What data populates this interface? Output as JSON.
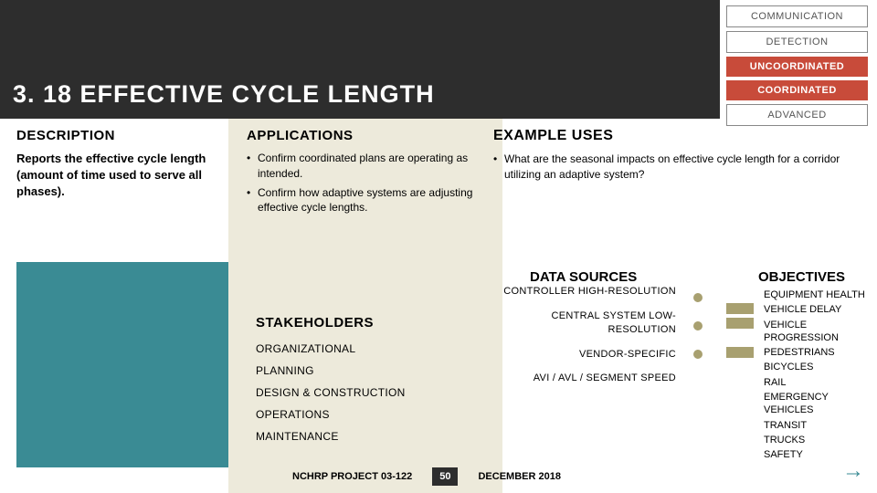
{
  "colors": {
    "dark": "#2d2d2d",
    "teal": "#3a8b94",
    "cream": "#edeadb",
    "olive": "#a8a070",
    "red": "#c84b3a",
    "grayBorder": "#888888"
  },
  "title": "3. 18 EFFECTIVE CYCLE LENGTH",
  "tags": [
    {
      "label": "COMMUNICATION",
      "bg": "#ffffff",
      "fg": "#555555",
      "solid": false
    },
    {
      "label": "DETECTION",
      "bg": "#ffffff",
      "fg": "#555555",
      "solid": false
    },
    {
      "label": "UNCOORDINATED",
      "bg": "#c84b3a",
      "fg": "#ffffff",
      "solid": true
    },
    {
      "label": "COORDINATED",
      "bg": "#c84b3a",
      "fg": "#ffffff",
      "solid": true
    },
    {
      "label": "ADVANCED",
      "bg": "#ffffff",
      "fg": "#555555",
      "solid": false
    }
  ],
  "description": {
    "heading": "DESCRIPTION",
    "text": "Reports the effective cycle length (amount of time used to serve all phases)."
  },
  "applications": {
    "heading": "APPLICATIONS",
    "items": [
      "Confirm coordinated plans are operating as intended.",
      "Confirm how adaptive systems are adjusting effective cycle lengths."
    ]
  },
  "example": {
    "heading": "EXAMPLE USES",
    "items": [
      "What are the seasonal impacts on effective cycle length for a corridor utilizing an adaptive system?"
    ]
  },
  "stakeholders": {
    "heading": "STAKEHOLDERS",
    "items": [
      "ORGANIZATIONAL",
      "PLANNING",
      "DESIGN & CONSTRUCTION",
      "OPERATIONS",
      "MAINTENANCE"
    ]
  },
  "datasources": {
    "heading": "DATA SOURCES",
    "items": [
      {
        "label": "CONTROLLER HIGH-RESOLUTION",
        "dot": "#a8a070"
      },
      {
        "label": "CENTRAL SYSTEM LOW-RESOLUTION",
        "dot": "#a8a070"
      },
      {
        "label": "VENDOR-SPECIFIC",
        "dot": "#a8a070"
      },
      {
        "label": "AVI / AVL / SEGMENT SPEED",
        "dot": null
      }
    ]
  },
  "objectives": {
    "heading": "OBJECTIVES",
    "items": [
      {
        "label": "EQUIPMENT HEALTH",
        "chip": null
      },
      {
        "label": "VEHICLE DELAY",
        "chip": "#a8a070"
      },
      {
        "label": "VEHICLE PROGRESSION",
        "chip": "#a8a070"
      },
      {
        "label": "PEDESTRIANS",
        "chip": null
      },
      {
        "label": "BICYCLES",
        "chip": "#a8a070"
      },
      {
        "label": "RAIL",
        "chip": null
      },
      {
        "label": "EMERGENCY VEHICLES",
        "chip": null
      },
      {
        "label": "TRANSIT",
        "chip": null
      },
      {
        "label": "TRUCKS",
        "chip": null
      },
      {
        "label": "SAFETY",
        "chip": null
      }
    ]
  },
  "footer": {
    "project": "NCHRP PROJECT 03-122",
    "page": "50",
    "date": "DECEMBER 2018"
  }
}
